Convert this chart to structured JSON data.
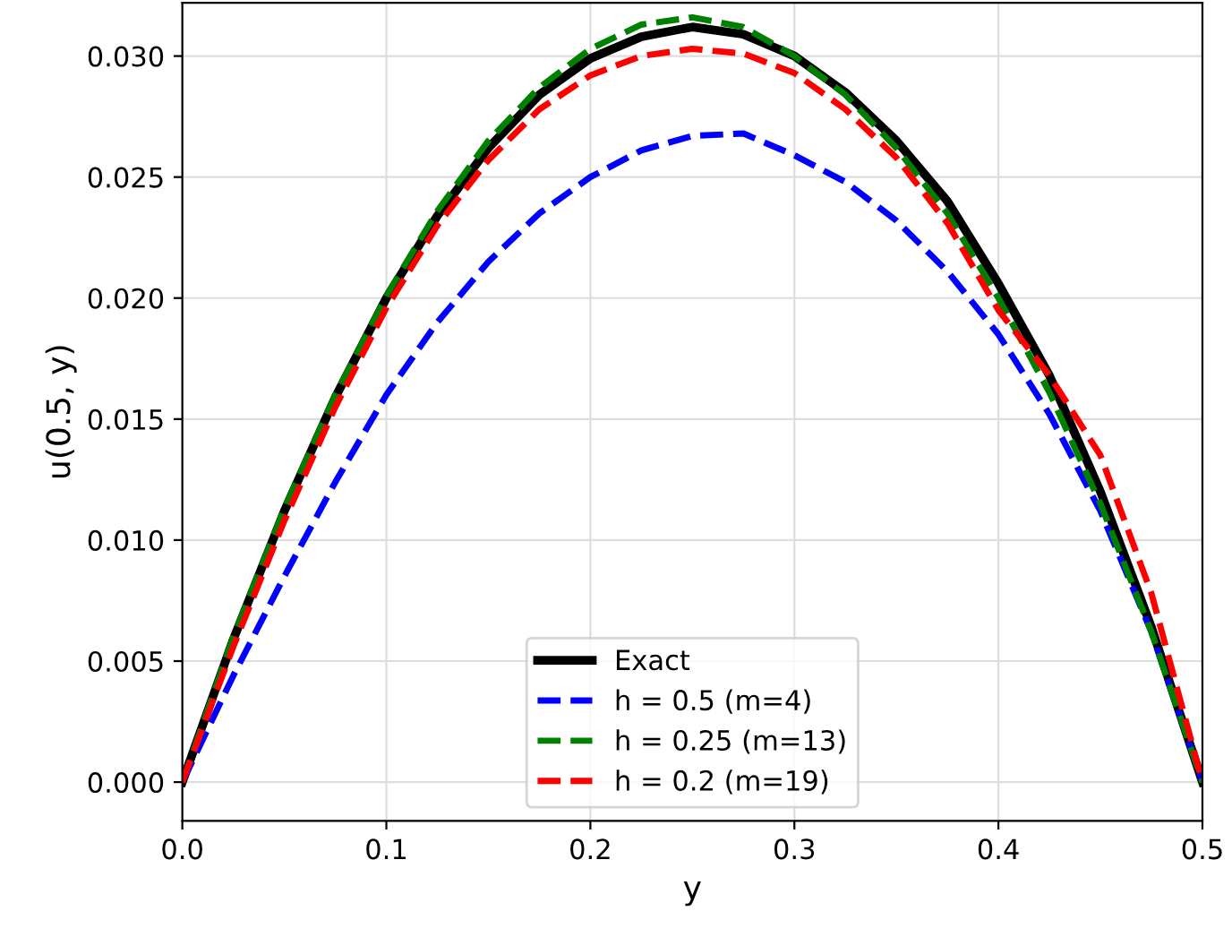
{
  "chart_data": {
    "type": "line",
    "xlabel": "y",
    "ylabel": "u(0.5, y)",
    "xlim": [
      0.0,
      0.5
    ],
    "ylim": [
      -0.0016,
      0.0322
    ],
    "xticks": [
      {
        "value": 0.0,
        "label": "0.0"
      },
      {
        "value": 0.1,
        "label": "0.1"
      },
      {
        "value": 0.2,
        "label": "0.2"
      },
      {
        "value": 0.3,
        "label": "0.3"
      },
      {
        "value": 0.4,
        "label": "0.4"
      },
      {
        "value": 0.5,
        "label": "0.5"
      }
    ],
    "yticks": [
      {
        "value": 0.0,
        "label": "0.000"
      },
      {
        "value": 0.005,
        "label": "0.005"
      },
      {
        "value": 0.01,
        "label": "0.010"
      },
      {
        "value": 0.015,
        "label": "0.015"
      },
      {
        "value": 0.02,
        "label": "0.020"
      },
      {
        "value": 0.025,
        "label": "0.025"
      },
      {
        "value": 0.03,
        "label": "0.030"
      }
    ],
    "grid": true,
    "legend": "bottom",
    "marker": "none",
    "x": [
      0.0,
      0.025,
      0.05,
      0.075,
      0.1,
      0.125,
      0.15,
      0.175,
      0.2,
      0.225,
      0.25,
      0.275,
      0.3,
      0.325,
      0.35,
      0.375,
      0.4,
      0.425,
      0.45,
      0.475,
      0.5
    ],
    "series": [
      {
        "name": "Exact",
        "color": "#000000",
        "line_style": "solid",
        "values": [
          0.0,
          0.0059,
          0.0112,
          0.0159,
          0.02,
          0.0234,
          0.0262,
          0.0284,
          0.0299,
          0.0308,
          0.0312,
          0.0309,
          0.03,
          0.0285,
          0.0265,
          0.024,
          0.0206,
          0.0168,
          0.012,
          0.0064,
          0.0
        ]
      },
      {
        "name": "h = 0.5 (m=4)",
        "color": "#0000ff",
        "line_style": "dashed",
        "values": [
          0.0,
          0.0044,
          0.0085,
          0.0124,
          0.016,
          0.019,
          0.0215,
          0.0235,
          0.025,
          0.0261,
          0.0267,
          0.0268,
          0.0259,
          0.0248,
          0.0232,
          0.0211,
          0.0185,
          0.0152,
          0.0112,
          0.0062,
          0.0
        ]
      },
      {
        "name": "h = 0.25 (m=13)",
        "color": "#008000",
        "line_style": "dashed",
        "values": [
          0.0,
          0.006,
          0.0113,
          0.016,
          0.0201,
          0.0236,
          0.0265,
          0.0287,
          0.0303,
          0.0313,
          0.0316,
          0.0312,
          0.03,
          0.0284,
          0.0262,
          0.0235,
          0.02,
          0.0161,
          0.0115,
          0.0062,
          0.0
        ]
      },
      {
        "name": "h = 0.2 (m=19)",
        "color": "#ff0000",
        "line_style": "dashed",
        "values": [
          0.0,
          0.0056,
          0.0108,
          0.0155,
          0.0196,
          0.023,
          0.0257,
          0.0278,
          0.0292,
          0.03,
          0.0303,
          0.0301,
          0.0293,
          0.0278,
          0.0258,
          0.0231,
          0.0195,
          0.0168,
          0.0135,
          0.0078,
          0.0
        ]
      }
    ]
  }
}
